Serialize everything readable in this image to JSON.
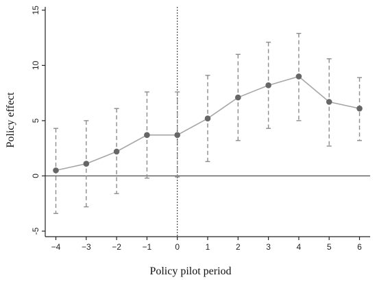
{
  "chart_data": {
    "type": "line",
    "title": "",
    "xlabel": "Policy pilot period",
    "ylabel": "Policy effect",
    "xlim": [
      -4.35,
      6.35
    ],
    "ylim": [
      -5.5,
      15.3
    ],
    "x_ticks": [
      -4,
      -3,
      -2,
      -1,
      0,
      1,
      2,
      3,
      4,
      5,
      6
    ],
    "x_tick_labels": [
      "−4",
      "−3",
      "−2",
      "−1",
      "0",
      "1",
      "2",
      "3",
      "4",
      "5",
      "6"
    ],
    "y_ticks": [
      -5,
      0,
      5,
      10,
      15
    ],
    "y_tick_labels": [
      "-5",
      "0",
      "5",
      "10",
      "15"
    ],
    "reference_line_y": 0,
    "reference_line_x": 0,
    "grid": false,
    "series": [
      {
        "x": [
          -4,
          -3,
          -2,
          -1,
          0,
          1,
          2,
          3,
          4,
          5,
          6
        ],
        "values": [
          0.5,
          1.1,
          2.2,
          3.7,
          3.7,
          5.2,
          7.1,
          8.2,
          9.0,
          6.7,
          6.1
        ],
        "lower": [
          -3.4,
          -2.8,
          -1.6,
          -0.2,
          -0.1,
          1.3,
          3.2,
          4.3,
          5.0,
          2.7,
          3.2
        ],
        "upper": [
          4.3,
          5.0,
          6.1,
          7.6,
          7.6,
          9.1,
          11.0,
          12.1,
          12.9,
          10.6,
          8.9
        ]
      }
    ],
    "colors": {
      "line": "#a6a6a6",
      "marker": "#666666",
      "error_bar": "#8c8c8c",
      "axis": "#222222"
    }
  }
}
